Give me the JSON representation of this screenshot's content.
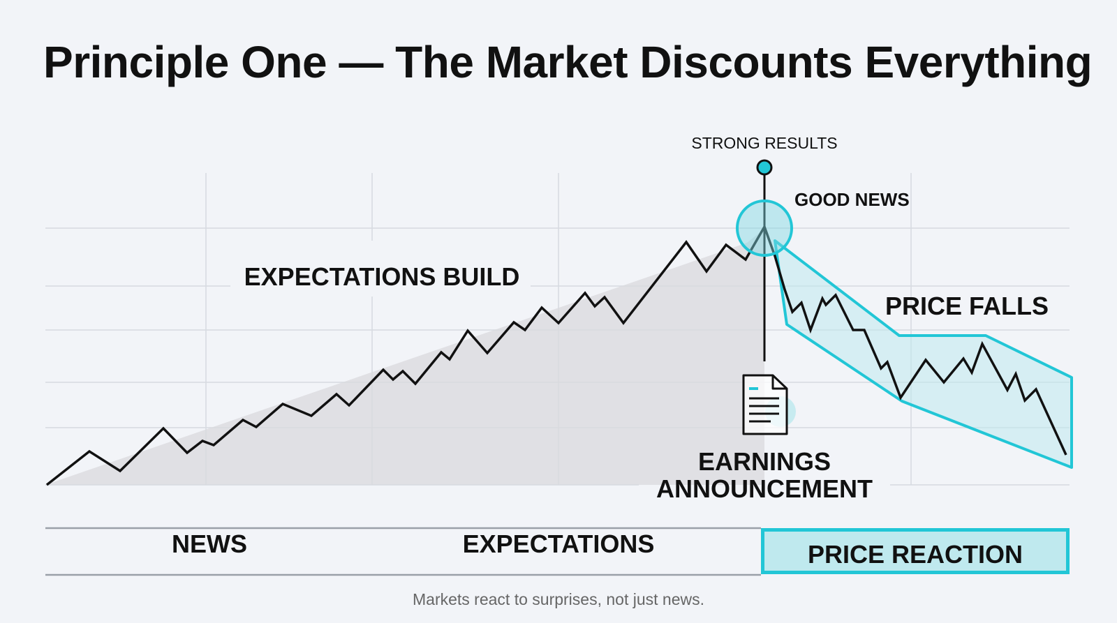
{
  "title": "Principle One — The Market Discounts Everything",
  "annotations": {
    "strong_results": "STRONG RESULTS",
    "good_news": "GOOD NEWS",
    "expectations_build": "EXPECTATIONS BUILD",
    "price_falls": "PRICE FALLS",
    "earnings_line1": "EARNINGS",
    "earnings_line2": "ANNOUNCEMENT"
  },
  "bands": {
    "news": "NEWS",
    "expectations": "EXPECTATIONS",
    "price_reaction": "PRICE REACTION"
  },
  "caption": "Markets react to surprises, not just news.",
  "colors": {
    "accent": "#22c6d6",
    "accent_fill": "#bfe9ee",
    "line": "#111111",
    "grid": "#d6dae0",
    "background": "#f2f4f8"
  },
  "icons": {
    "document": "document-icon"
  }
}
